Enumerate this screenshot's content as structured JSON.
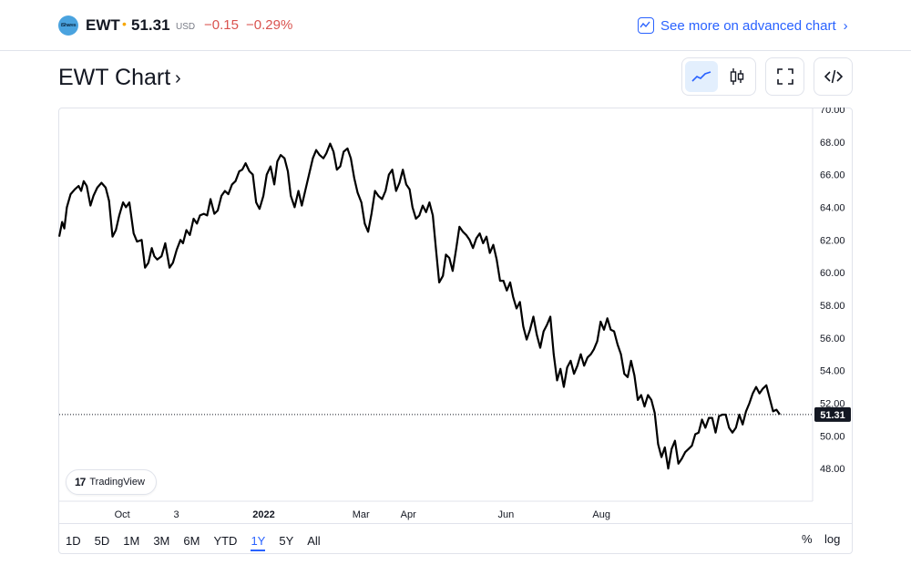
{
  "header": {
    "logo_text": "iShares",
    "symbol": "EWT",
    "separator": "•",
    "price": "51.31",
    "currency": "USD",
    "change": "−0.15",
    "change_percent": "−0.29%",
    "advanced_link": "See more on advanced chart",
    "negative_color": "#d9534f",
    "link_color": "#2962ff"
  },
  "chart_title": "EWT Chart",
  "toolbar": {
    "line_icon": "line-chart-icon",
    "candle_icon": "candlestick-icon",
    "fullscreen_icon": "fullscreen-icon",
    "embed_icon": "code-embed-icon"
  },
  "badge": {
    "brand": "TradingView"
  },
  "ranges": [
    "1D",
    "5D",
    "1M",
    "3M",
    "6M",
    "YTD",
    "1Y",
    "5Y",
    "All"
  ],
  "active_range": "1Y",
  "scale_options": {
    "percent": "%",
    "log": "log"
  },
  "chart_data": {
    "type": "line",
    "title": "",
    "xlabel": "",
    "ylabel": "",
    "ylim": [
      46,
      70
    ],
    "y_ticks": [
      "70.00",
      "68.00",
      "66.00",
      "64.00",
      "62.00",
      "60.00",
      "58.00",
      "56.00",
      "54.00",
      "52.00",
      "50.00",
      "48.00"
    ],
    "x_ticks": [
      {
        "label": "Oct",
        "x": 14.9
      },
      {
        "label": "3",
        "x": 27.7
      },
      {
        "label": "2022",
        "x": 48.4
      },
      {
        "label": "Mar",
        "x": 71.4
      },
      {
        "label": "Apr",
        "x": 82.6
      },
      {
        "label": "Jun",
        "x": 105.7
      },
      {
        "label": "Aug",
        "x": 128.3
      }
    ],
    "last_price": 51.31,
    "last_price_label": "51.31",
    "line_color": "#000000",
    "grid": false,
    "series": [
      {
        "values": [
          [
            0,
            62.2
          ],
          [
            0.7,
            63.1
          ],
          [
            1.2,
            62.7
          ],
          [
            1.8,
            64.0
          ],
          [
            2.7,
            64.8
          ],
          [
            3.7,
            65.1
          ],
          [
            4.6,
            65.3
          ],
          [
            5.2,
            65.0
          ],
          [
            5.8,
            65.6
          ],
          [
            6.5,
            65.3
          ],
          [
            7.4,
            64.1
          ],
          [
            8.1,
            64.7
          ],
          [
            9.0,
            65.2
          ],
          [
            10.0,
            65.5
          ],
          [
            11.0,
            65.2
          ],
          [
            11.8,
            64.4
          ],
          [
            12.6,
            62.2
          ],
          [
            13.4,
            62.6
          ],
          [
            14.2,
            63.5
          ],
          [
            15.1,
            64.3
          ],
          [
            15.8,
            64.0
          ],
          [
            16.6,
            64.3
          ],
          [
            17.6,
            62.4
          ],
          [
            18.4,
            61.9
          ],
          [
            19.5,
            62.0
          ],
          [
            20.3,
            60.3
          ],
          [
            21.1,
            60.6
          ],
          [
            21.9,
            61.5
          ],
          [
            22.5,
            61.0
          ],
          [
            23.2,
            60.8
          ],
          [
            24.2,
            61.0
          ],
          [
            25.1,
            61.8
          ],
          [
            26.1,
            60.3
          ],
          [
            26.9,
            60.6
          ],
          [
            27.8,
            61.4
          ],
          [
            28.7,
            62.0
          ],
          [
            29.3,
            61.8
          ],
          [
            30.1,
            62.6
          ],
          [
            30.9,
            62.3
          ],
          [
            31.8,
            63.3
          ],
          [
            32.6,
            63.0
          ],
          [
            33.3,
            63.5
          ],
          [
            34.2,
            63.6
          ],
          [
            35.0,
            63.5
          ],
          [
            35.8,
            64.5
          ],
          [
            36.7,
            63.6
          ],
          [
            37.5,
            63.8
          ],
          [
            38.4,
            64.7
          ],
          [
            39.2,
            65.0
          ],
          [
            40.0,
            64.8
          ],
          [
            40.9,
            65.4
          ],
          [
            41.7,
            65.6
          ],
          [
            42.6,
            66.2
          ],
          [
            43.3,
            66.3
          ],
          [
            44.1,
            66.7
          ],
          [
            45.0,
            66.2
          ],
          [
            45.8,
            66.0
          ],
          [
            46.6,
            64.3
          ],
          [
            47.4,
            63.9
          ],
          [
            48.3,
            64.7
          ],
          [
            49.1,
            66.0
          ],
          [
            50.0,
            66.5
          ],
          [
            50.9,
            65.4
          ],
          [
            51.6,
            66.8
          ],
          [
            52.4,
            67.2
          ],
          [
            53.3,
            67.0
          ],
          [
            54.1,
            66.2
          ],
          [
            54.8,
            64.7
          ],
          [
            55.7,
            64.0
          ],
          [
            56.6,
            65.0
          ],
          [
            57.4,
            64.1
          ],
          [
            58.2,
            65.0
          ],
          [
            59.1,
            66.0
          ],
          [
            60.0,
            67.0
          ],
          [
            60.8,
            67.5
          ],
          [
            61.6,
            67.2
          ],
          [
            62.5,
            67.0
          ],
          [
            63.2,
            67.3
          ],
          [
            64.1,
            67.9
          ],
          [
            64.9,
            67.4
          ],
          [
            65.7,
            66.3
          ],
          [
            66.5,
            66.5
          ],
          [
            67.3,
            67.4
          ],
          [
            68.2,
            67.6
          ],
          [
            69.0,
            67.0
          ],
          [
            69.8,
            65.8
          ],
          [
            70.6,
            64.9
          ],
          [
            71.5,
            64.3
          ],
          [
            72.3,
            63.0
          ],
          [
            73.1,
            62.5
          ],
          [
            73.9,
            63.6
          ],
          [
            74.7,
            65.0
          ],
          [
            75.5,
            64.7
          ],
          [
            76.4,
            64.5
          ],
          [
            77.2,
            65.0
          ],
          [
            78.0,
            66.0
          ],
          [
            78.8,
            66.3
          ],
          [
            79.7,
            65.0
          ],
          [
            80.5,
            65.5
          ],
          [
            81.3,
            66.3
          ],
          [
            82.1,
            65.4
          ],
          [
            82.9,
            65.1
          ],
          [
            83.6,
            64.0
          ],
          [
            84.4,
            63.3
          ],
          [
            85.2,
            63.5
          ],
          [
            86.0,
            64.1
          ],
          [
            86.8,
            63.7
          ],
          [
            87.6,
            64.3
          ],
          [
            88.4,
            63.5
          ],
          [
            89.2,
            61.3
          ],
          [
            89.9,
            59.4
          ],
          [
            90.8,
            59.8
          ],
          [
            91.5,
            61.1
          ],
          [
            92.3,
            60.9
          ],
          [
            93.1,
            60.1
          ],
          [
            93.9,
            61.4
          ],
          [
            94.7,
            62.8
          ],
          [
            95.5,
            62.5
          ],
          [
            96.3,
            62.3
          ],
          [
            97.1,
            62.0
          ],
          [
            97.9,
            61.5
          ],
          [
            98.7,
            62.1
          ],
          [
            99.5,
            62.4
          ],
          [
            100.3,
            61.8
          ],
          [
            101.1,
            62.2
          ],
          [
            101.9,
            61.2
          ],
          [
            102.7,
            61.7
          ],
          [
            103.5,
            60.8
          ],
          [
            104.3,
            59.5
          ],
          [
            105.1,
            59.5
          ],
          [
            105.9,
            58.9
          ],
          [
            106.7,
            59.4
          ],
          [
            107.4,
            58.5
          ],
          [
            108.2,
            57.8
          ],
          [
            109.0,
            58.2
          ],
          [
            109.8,
            56.7
          ],
          [
            110.6,
            55.9
          ],
          [
            111.4,
            56.5
          ],
          [
            112.2,
            57.3
          ],
          [
            113.0,
            56.2
          ],
          [
            113.8,
            55.4
          ],
          [
            114.6,
            56.4
          ],
          [
            115.4,
            56.8
          ],
          [
            116.2,
            57.3
          ],
          [
            117.0,
            55.0
          ],
          [
            117.8,
            53.4
          ],
          [
            118.6,
            54.1
          ],
          [
            119.4,
            53.0
          ],
          [
            120.2,
            54.2
          ],
          [
            121.0,
            54.6
          ],
          [
            121.8,
            53.8
          ],
          [
            122.6,
            54.3
          ],
          [
            123.4,
            55.0
          ],
          [
            124.2,
            54.3
          ],
          [
            125.0,
            54.8
          ],
          [
            125.8,
            55.0
          ],
          [
            126.5,
            55.3
          ],
          [
            127.3,
            55.8
          ],
          [
            128.1,
            57.0
          ],
          [
            128.9,
            56.5
          ],
          [
            129.7,
            57.2
          ],
          [
            130.5,
            56.5
          ],
          [
            131.3,
            56.4
          ],
          [
            132.1,
            55.6
          ],
          [
            132.9,
            55.0
          ],
          [
            133.7,
            53.8
          ],
          [
            134.5,
            53.6
          ],
          [
            135.3,
            54.6
          ],
          [
            136.1,
            53.7
          ],
          [
            136.9,
            52.2
          ],
          [
            137.7,
            52.5
          ],
          [
            138.5,
            51.8
          ],
          [
            139.3,
            52.5
          ],
          [
            140.1,
            52.2
          ],
          [
            140.9,
            51.4
          ],
          [
            141.7,
            49.5
          ],
          [
            142.5,
            48.7
          ],
          [
            143.3,
            49.3
          ],
          [
            144.1,
            48.0
          ],
          [
            144.9,
            49.2
          ],
          [
            145.7,
            49.7
          ],
          [
            146.5,
            48.3
          ],
          [
            147.3,
            48.6
          ],
          [
            148.1,
            49.0
          ],
          [
            148.9,
            49.2
          ],
          [
            149.7,
            49.4
          ],
          [
            150.5,
            50.1
          ],
          [
            151.3,
            50.2
          ],
          [
            152.1,
            51.0
          ],
          [
            152.9,
            50.5
          ],
          [
            153.7,
            51.1
          ],
          [
            154.5,
            51.1
          ],
          [
            155.3,
            50.2
          ],
          [
            156.1,
            51.2
          ],
          [
            156.9,
            51.3
          ],
          [
            157.7,
            51.3
          ],
          [
            158.5,
            50.5
          ],
          [
            159.3,
            50.2
          ],
          [
            160.1,
            50.5
          ],
          [
            160.9,
            51.3
          ],
          [
            161.7,
            50.7
          ],
          [
            162.5,
            51.5
          ],
          [
            163.3,
            52.0
          ],
          [
            164.1,
            52.6
          ],
          [
            164.9,
            53.0
          ],
          [
            165.7,
            52.6
          ],
          [
            166.5,
            52.9
          ],
          [
            167.3,
            53.1
          ],
          [
            168.1,
            52.3
          ],
          [
            168.9,
            51.5
          ],
          [
            169.7,
            51.6
          ],
          [
            170.5,
            51.31
          ]
        ]
      }
    ]
  }
}
